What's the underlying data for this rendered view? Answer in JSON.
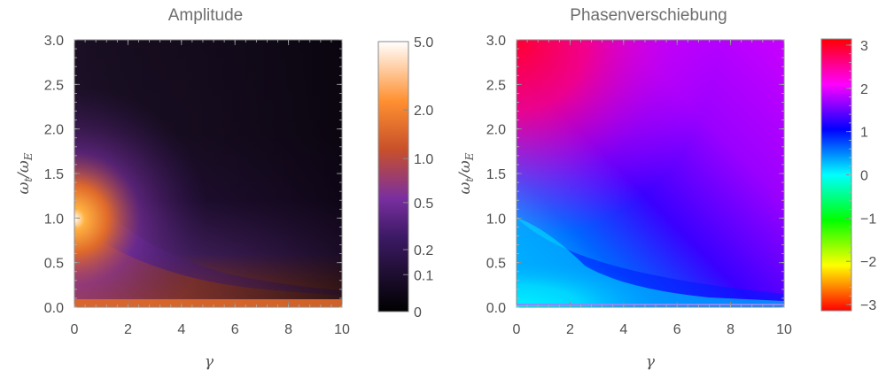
{
  "chart_data": [
    {
      "type": "heatmap",
      "title": "Amplitude",
      "xlabel": "γ",
      "ylabel": "ωt/ωE",
      "ylabel_parts": {
        "main": "ω",
        "sub1": "t",
        "sep": "/ω",
        "sub2": "E"
      },
      "x_ticks": [
        "0",
        "2",
        "4",
        "6",
        "8",
        "10"
      ],
      "y_ticks": [
        "0.0",
        "0.5",
        "1.0",
        "1.5",
        "2.0",
        "2.5",
        "3.0"
      ],
      "xlim": [
        0,
        10
      ],
      "ylim": [
        0,
        3
      ],
      "colorbar": {
        "scale": "log-like",
        "ticks": [
          "0",
          "0.1",
          "0.2",
          "0.5",
          "1.0",
          "2.0",
          "5.0"
        ],
        "colors": [
          "#000000",
          "#1a0c2a",
          "#3d1a66",
          "#7a2fa0",
          "#c8502a",
          "#ff9030",
          "#ffffff"
        ]
      }
    },
    {
      "type": "heatmap",
      "title": "Phasenverschiebung",
      "xlabel": "γ",
      "ylabel": "ωt/ωE",
      "ylabel_parts": {
        "main": "ω",
        "sub1": "t",
        "sep": "/ω",
        "sub2": "E"
      },
      "x_ticks": [
        "0",
        "2",
        "4",
        "6",
        "8",
        "10"
      ],
      "y_ticks": [
        "0.0",
        "0.5",
        "1.0",
        "1.5",
        "2.0",
        "2.5",
        "3.0"
      ],
      "xlim": [
        0,
        10
      ],
      "ylim": [
        0,
        3
      ],
      "colorbar": {
        "scale": "linear",
        "range": [
          -3.14159,
          3.14159
        ],
        "ticks": [
          "-3",
          "-2",
          "-1",
          "0",
          "1",
          "2",
          "3"
        ],
        "colors": [
          "#ff0000",
          "#ffff00",
          "#00ff00",
          "#00ffff",
          "#0000ff",
          "#ff00ff",
          "#ff0000"
        ]
      }
    }
  ]
}
